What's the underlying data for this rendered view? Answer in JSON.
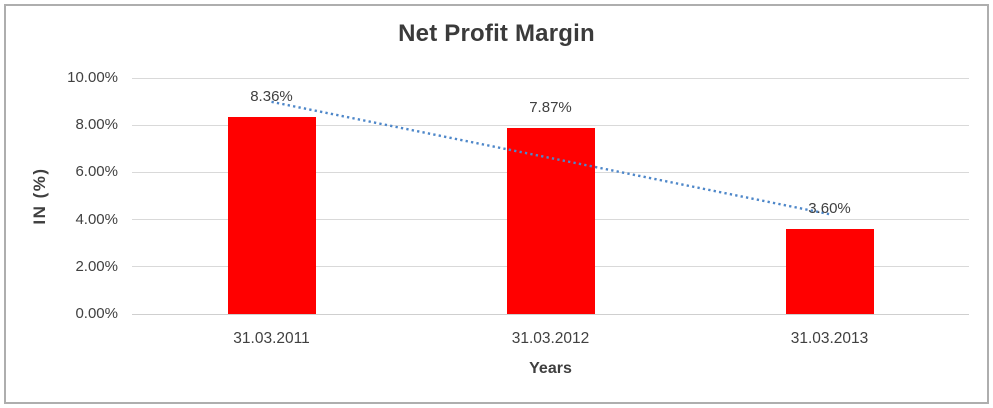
{
  "chart_data": {
    "type": "bar",
    "title": "Net Profit Margin",
    "xlabel": "Years",
    "ylabel": "IN (%)",
    "categories": [
      "31.03.2011",
      "31.03.2012",
      "31.03.2013"
    ],
    "values": [
      8.36,
      7.87,
      3.6
    ],
    "value_labels": [
      "8.36%",
      "7.87%",
      "3.60%"
    ],
    "ylim": [
      0,
      10
    ],
    "ytick_values": [
      0,
      2,
      4,
      6,
      8,
      10
    ],
    "ytick_labels": [
      "0.00%",
      "2.00%",
      "4.00%",
      "6.00%",
      "8.00%",
      "10.00%"
    ],
    "grid": true,
    "legend_position": "none",
    "bar_color": "#ff0000",
    "text_color": "#404040",
    "gridline_color": "#d9d9d9",
    "trendline": {
      "type": "linear",
      "style": "dotted",
      "color": "#4e87c9",
      "start_value": 8.99,
      "end_value": 4.23
    }
  }
}
